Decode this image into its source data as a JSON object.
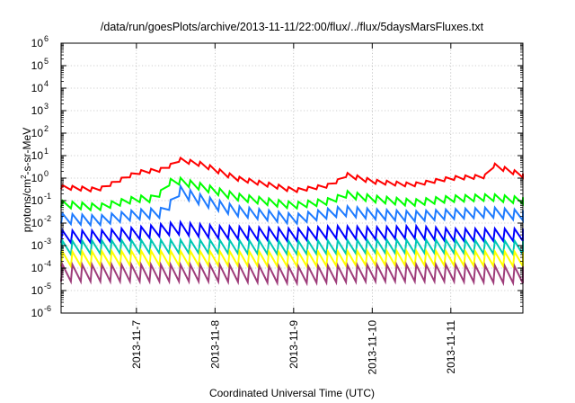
{
  "chart_data": {
    "type": "line",
    "title": "/data/run/goesPlots/archive/2013-11-11/22:00/flux/../flux/5daysMarsFluxes.txt",
    "xlabel": "Coordinated Universal Time (UTC)",
    "ylabel": {
      "base": "protons/cm",
      "sup": "2",
      "rest": "-s-sr-MeV"
    },
    "yscale": "log",
    "ylim_exp": [
      -6,
      6
    ],
    "y_ticks": [
      {
        "value": 1e-06,
        "mantissa": "10",
        "exp": "-6"
      },
      {
        "value": 1e-05,
        "mantissa": "10",
        "exp": "-5"
      },
      {
        "value": 0.0001,
        "mantissa": "10",
        "exp": "-4"
      },
      {
        "value": 0.001,
        "mantissa": "10",
        "exp": "-3"
      },
      {
        "value": 0.01,
        "mantissa": "10",
        "exp": "-2"
      },
      {
        "value": 0.1,
        "mantissa": "10",
        "exp": "-1"
      },
      {
        "value": 1,
        "mantissa": "10",
        "exp": "0"
      },
      {
        "value": 10,
        "mantissa": "10",
        "exp": "1"
      },
      {
        "value": 100,
        "mantissa": "10",
        "exp": "2"
      },
      {
        "value": 1000,
        "mantissa": "10",
        "exp": "3"
      },
      {
        "value": 10000,
        "mantissa": "10",
        "exp": "4"
      },
      {
        "value": 100000,
        "mantissa": "10",
        "exp": "5"
      },
      {
        "value": 1000000,
        "mantissa": "10",
        "exp": "6"
      }
    ],
    "x_ticks": [
      "2013-11-7",
      "2013-11-8",
      "2013-11-9",
      "2013-11-10",
      "2013-11-11"
    ],
    "xlim": [
      "2013-11-06T01:00",
      "2013-11-11T22:00"
    ],
    "grid": true,
    "legend": "none",
    "series": [
      {
        "color": "#ff0000",
        "points": [
          [
            "2013-11-06T01:00",
            0.4
          ],
          [
            "2013-11-06T12:00",
            0.3
          ],
          [
            "2013-11-07T00:00",
            1.8
          ],
          [
            "2013-11-07T09:00",
            2.5
          ],
          [
            "2013-11-07T12:00",
            7.0
          ],
          [
            "2013-11-07T20:00",
            4.0
          ],
          [
            "2013-11-08T06:00",
            1.0
          ],
          [
            "2013-11-08T18:00",
            0.45
          ],
          [
            "2013-11-09T00:00",
            0.28
          ],
          [
            "2013-11-09T12:00",
            0.5
          ],
          [
            "2013-11-09T15:00",
            1.5
          ],
          [
            "2013-11-10T00:00",
            0.7
          ],
          [
            "2013-11-10T12:00",
            0.5
          ],
          [
            "2013-11-11T00:00",
            1.0
          ],
          [
            "2013-11-11T10:00",
            1.2
          ],
          [
            "2013-11-11T12:00",
            4.0
          ],
          [
            "2013-11-11T22:00",
            1.3
          ]
        ]
      },
      {
        "color": "#00ff00",
        "points": [
          [
            "2013-11-06T01:00",
            0.07
          ],
          [
            "2013-11-06T12:00",
            0.05
          ],
          [
            "2013-11-07T00:00",
            0.12
          ],
          [
            "2013-11-07T06:00",
            0.12
          ],
          [
            "2013-11-07T09:00",
            0.6
          ],
          [
            "2013-11-07T12:00",
            0.8
          ],
          [
            "2013-11-07T20:00",
            0.4
          ],
          [
            "2013-11-08T06:00",
            0.15
          ],
          [
            "2013-11-08T18:00",
            0.08
          ],
          [
            "2013-11-09T00:00",
            0.06
          ],
          [
            "2013-11-09T12:00",
            0.1
          ],
          [
            "2013-11-09T15:00",
            0.2
          ],
          [
            "2013-11-10T00:00",
            0.12
          ],
          [
            "2013-11-10T12:00",
            0.08
          ],
          [
            "2013-11-11T00:00",
            0.12
          ],
          [
            "2013-11-11T12:00",
            0.14
          ],
          [
            "2013-11-11T22:00",
            0.1
          ]
        ]
      },
      {
        "color": "#1e7bff",
        "points": [
          [
            "2013-11-06T01:00",
            0.016
          ],
          [
            "2013-11-06T12:00",
            0.013
          ],
          [
            "2013-11-07T00:00",
            0.024
          ],
          [
            "2013-11-07T09:00",
            0.03
          ],
          [
            "2013-11-07T12:00",
            0.3
          ],
          [
            "2013-11-07T20:00",
            0.1
          ],
          [
            "2013-11-08T06:00",
            0.035
          ],
          [
            "2013-11-08T18:00",
            0.02
          ],
          [
            "2013-11-09T00:00",
            0.015
          ],
          [
            "2013-11-09T15:00",
            0.035
          ],
          [
            "2013-11-10T00:00",
            0.025
          ],
          [
            "2013-11-10T12:00",
            0.02
          ],
          [
            "2013-11-11T00:00",
            0.025
          ],
          [
            "2013-11-11T12:00",
            0.03
          ],
          [
            "2013-11-11T22:00",
            0.022
          ]
        ]
      },
      {
        "color": "#0000ff",
        "points": [
          [
            "2013-11-06T01:00",
            0.0025
          ],
          [
            "2013-11-06T12:00",
            0.0025
          ],
          [
            "2013-11-07T00:00",
            0.0035
          ],
          [
            "2013-11-07T12:00",
            0.006
          ],
          [
            "2013-11-08T00:00",
            0.004
          ],
          [
            "2013-11-09T00:00",
            0.003
          ],
          [
            "2013-11-09T12:00",
            0.004
          ],
          [
            "2013-11-10T00:00",
            0.0035
          ],
          [
            "2013-11-10T12:00",
            0.004
          ],
          [
            "2013-11-11T00:00",
            0.003
          ],
          [
            "2013-11-11T22:00",
            0.003
          ]
        ]
      },
      {
        "color": "#00c8b4",
        "points": [
          [
            "2013-11-06T01:00",
            0.0008
          ],
          [
            "2013-11-07T00:00",
            0.0009
          ],
          [
            "2013-11-08T00:00",
            0.0009
          ],
          [
            "2013-11-09T00:00",
            0.0008
          ],
          [
            "2013-11-10T00:00",
            0.0009
          ],
          [
            "2013-11-11T00:00",
            0.0009
          ],
          [
            "2013-11-11T22:00",
            0.0008
          ]
        ]
      },
      {
        "color": "#ffff00",
        "points": [
          [
            "2013-11-06T01:00",
            0.00025
          ],
          [
            "2013-11-07T00:00",
            0.00028
          ],
          [
            "2013-11-08T00:00",
            0.00027
          ],
          [
            "2013-11-09T00:00",
            0.00025
          ],
          [
            "2013-11-10T00:00",
            0.00028
          ],
          [
            "2013-11-11T00:00",
            0.00027
          ],
          [
            "2013-11-11T22:00",
            0.00025
          ]
        ]
      },
      {
        "color": "#9e3c7a",
        "points": [
          [
            "2013-11-06T01:00",
            6e-05
          ],
          [
            "2013-11-07T00:00",
            6e-05
          ],
          [
            "2013-11-08T00:00",
            6e-05
          ],
          [
            "2013-11-09T00:00",
            5e-05
          ],
          [
            "2013-11-10T00:00",
            6e-05
          ],
          [
            "2013-11-11T00:00",
            6e-05
          ],
          [
            "2013-11-11T22:00",
            5e-05
          ]
        ]
      }
    ]
  }
}
